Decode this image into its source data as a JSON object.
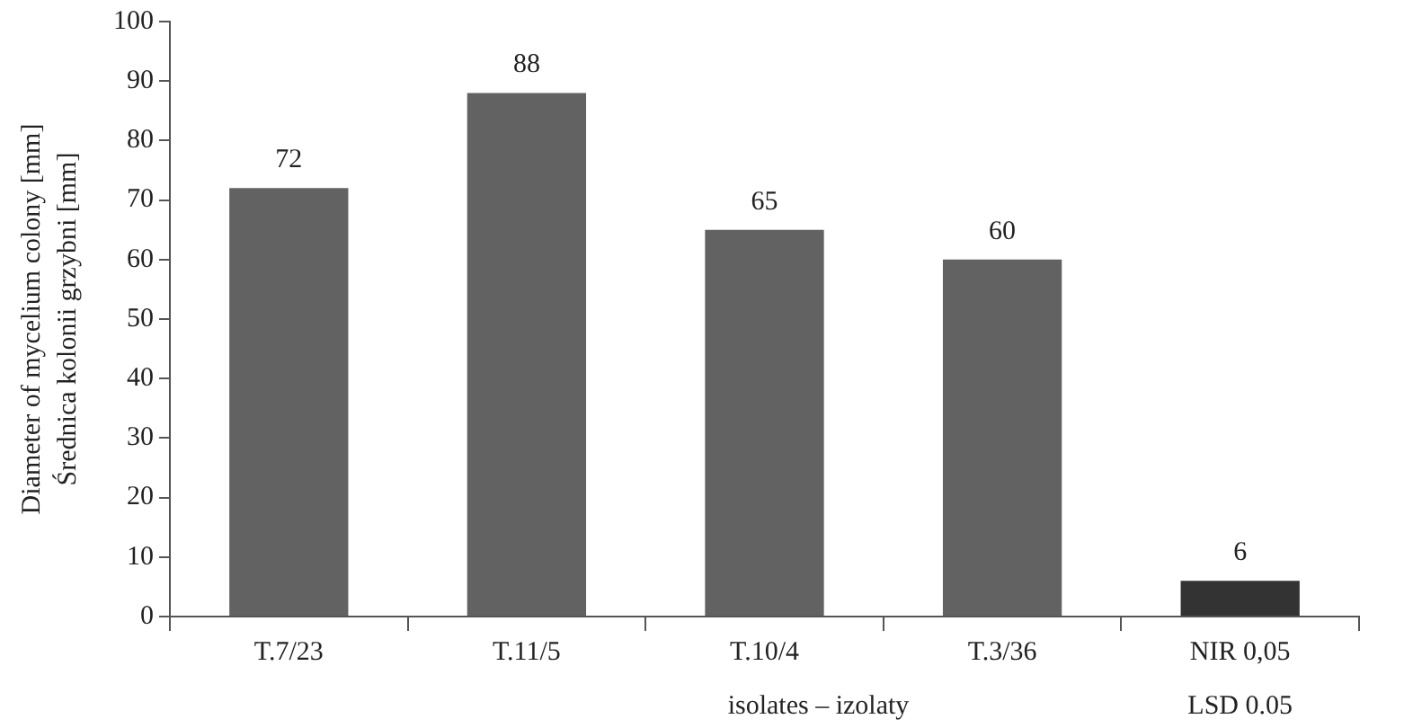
{
  "chart_data": {
    "type": "bar",
    "categories": [
      "T.7/23",
      "T.11/5",
      "T.10/4",
      "T.3/36",
      "NIR 0,05"
    ],
    "values": [
      72,
      88,
      65,
      60,
      6
    ],
    "colors": [
      "#626262",
      "#626262",
      "#626262",
      "#626262",
      "#333333"
    ],
    "ylim": [
      0,
      100
    ],
    "yticks": [
      0,
      10,
      20,
      30,
      40,
      50,
      60,
      70,
      80,
      90,
      100
    ],
    "xlabel": "isolates – izolaty",
    "ylabel": "Diameter of mycelium colony [mm]\nŚrednica kolonii grzybni [mm]",
    "annotations": [
      "LSD 0.05"
    ],
    "data_labels": true,
    "grid": false,
    "legend": false
  }
}
